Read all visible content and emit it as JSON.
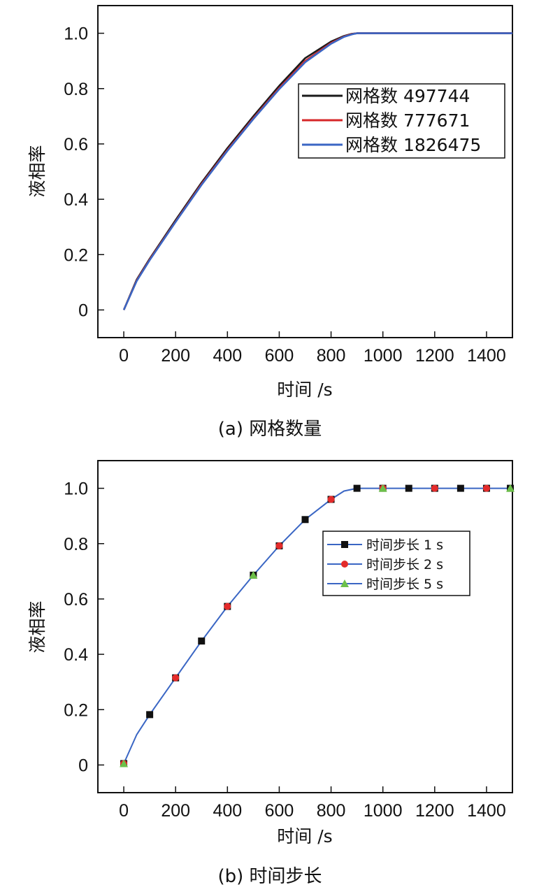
{
  "chart_data": [
    {
      "type": "line",
      "caption": "(a) 网格数量",
      "xlabel": "时间 /s",
      "ylabel": "液相率",
      "xlim": [
        -100,
        1500
      ],
      "ylim": [
        -0.1,
        1.1
      ],
      "xticks": [
        0,
        200,
        400,
        600,
        800,
        1000,
        1200,
        1400
      ],
      "yticks": [
        0,
        0.2,
        0.4,
        0.6,
        0.8,
        1.0
      ],
      "ytick_labels": [
        "0",
        "0.2",
        "0.4",
        "0.6",
        "0.8",
        "1.0"
      ],
      "grid": false,
      "legend_position": "upper-right",
      "series": [
        {
          "name": "网格数 497744",
          "color": "#1a1a1a",
          "x": [
            0,
            50,
            100,
            200,
            300,
            400,
            500,
            600,
            700,
            800,
            850,
            880,
            900,
            1000,
            1200,
            1400,
            1500
          ],
          "y": [
            0.0,
            0.11,
            0.185,
            0.325,
            0.46,
            0.585,
            0.7,
            0.81,
            0.91,
            0.97,
            0.99,
            0.998,
            1.0,
            1.0,
            1.0,
            1.0,
            1.0
          ]
        },
        {
          "name": "网格数 777671",
          "color": "#d62728",
          "x": [
            0,
            50,
            100,
            200,
            300,
            400,
            500,
            600,
            700,
            800,
            850,
            880,
            900,
            1000,
            1200,
            1400,
            1500
          ],
          "y": [
            0.0,
            0.107,
            0.182,
            0.32,
            0.455,
            0.578,
            0.693,
            0.802,
            0.9,
            0.965,
            0.988,
            0.997,
            1.0,
            1.0,
            1.0,
            1.0,
            1.0
          ]
        },
        {
          "name": "网格数 1826475",
          "color": "#3a66c4",
          "x": [
            0,
            50,
            100,
            200,
            300,
            400,
            500,
            600,
            700,
            800,
            850,
            880,
            900,
            1000,
            1200,
            1400,
            1500
          ],
          "y": [
            0.0,
            0.105,
            0.18,
            0.318,
            0.452,
            0.575,
            0.69,
            0.798,
            0.895,
            0.962,
            0.987,
            0.996,
            1.0,
            1.0,
            1.0,
            1.0,
            1.0
          ]
        }
      ]
    },
    {
      "type": "line",
      "caption": "(b) 时间步长",
      "xlabel": "时间 /s",
      "ylabel": "液相率",
      "xlim": [
        -100,
        1500
      ],
      "ylim": [
        -0.1,
        1.1
      ],
      "xticks": [
        0,
        200,
        400,
        600,
        800,
        1000,
        1200,
        1400
      ],
      "yticks": [
        0,
        0.2,
        0.4,
        0.6,
        0.8,
        1.0
      ],
      "ytick_labels": [
        "0",
        "0.2",
        "0.4",
        "0.6",
        "0.8",
        "1.0"
      ],
      "grid": false,
      "legend_position": "right",
      "curve": {
        "color": "#3a66c4",
        "x": [
          0,
          50,
          100,
          200,
          300,
          400,
          500,
          600,
          700,
          800,
          850,
          900,
          1000,
          1200,
          1400,
          1500
        ],
        "y": [
          0.005,
          0.11,
          0.182,
          0.315,
          0.448,
          0.573,
          0.686,
          0.792,
          0.887,
          0.96,
          0.99,
          1.0,
          1.0,
          1.0,
          1.0,
          1.0
        ]
      },
      "series": [
        {
          "name": "时间步长 1 s",
          "marker": "square",
          "color": "#111111",
          "x": [
            0,
            100,
            200,
            300,
            400,
            500,
            600,
            700,
            800,
            900,
            1000,
            1100,
            1200,
            1300,
            1400,
            1500
          ],
          "y": [
            0.005,
            0.182,
            0.315,
            0.448,
            0.573,
            0.686,
            0.792,
            0.887,
            0.96,
            1.0,
            1.0,
            1.0,
            1.0,
            1.0,
            1.0,
            1.0
          ]
        },
        {
          "name": "时间步长 2 s",
          "marker": "circle",
          "color": "#e32b2b",
          "x": [
            0,
            200,
            400,
            600,
            800,
            1000,
            1200,
            1400
          ],
          "y": [
            0.005,
            0.315,
            0.573,
            0.792,
            0.96,
            1.0,
            1.0,
            1.0
          ]
        },
        {
          "name": "时间步长 5 s",
          "marker": "triangle",
          "color": "#6cc04a",
          "x": [
            0,
            500,
            1000,
            1500
          ],
          "y": [
            0.005,
            0.686,
            1.0,
            1.0
          ]
        }
      ]
    }
  ]
}
